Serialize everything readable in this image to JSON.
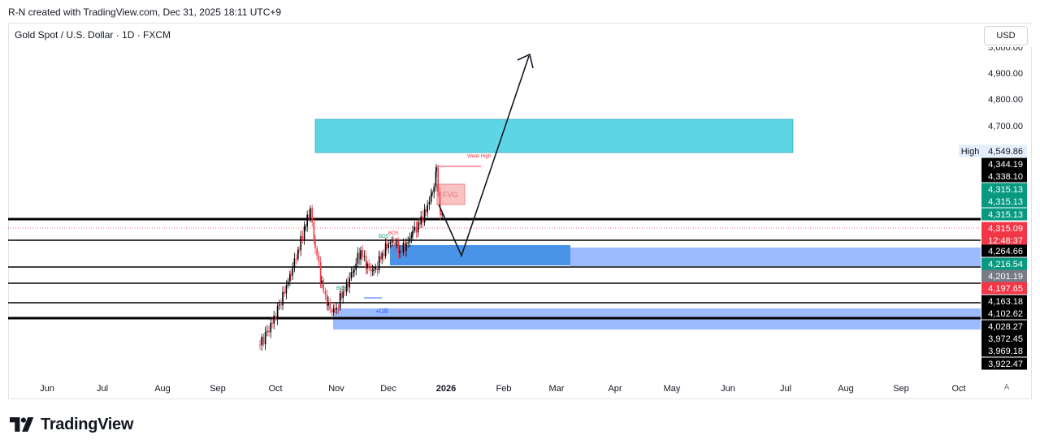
{
  "credit": "R-N created with TradingView.com, Dec 31, 2025 18:11 UTC+9",
  "symbol": "Gold Spot / U.S. Dollar · 1D · FXCM",
  "currency_button": "USD",
  "auto_scale_label": "A",
  "logo_text": "TradingView",
  "colors": {
    "bull": "#089981",
    "bear": "#f23645",
    "zone_cyan": "#4dd0e1",
    "zone_blue": "#3f8ee8",
    "zone_lightblue": "#91b4ff"
  },
  "chart_data": {
    "type": "candlestick",
    "price_labels": [
      {
        "value": 4549.86,
        "text": "4,549.86",
        "tag": "High",
        "style": "high"
      },
      {
        "value": 4344.19,
        "text": "4,344.19",
        "style": "black"
      },
      {
        "value": 4338.1,
        "text": "4,338.10",
        "style": "black"
      },
      {
        "value": 4315.13,
        "text": "4,315.13",
        "style": "green"
      },
      {
        "value": 4315.13,
        "text": "4,315.13",
        "style": "green"
      },
      {
        "value": 4315.13,
        "text": "4,315.13",
        "style": "green"
      },
      {
        "value": 4315.09,
        "text": "4,315.09",
        "style": "red",
        "sub": "12:48:37"
      },
      {
        "value": 4264.66,
        "text": "4,264.66",
        "style": "black"
      },
      {
        "value": 4216.54,
        "text": "4,216.54",
        "style": "green"
      },
      {
        "value": 4201.19,
        "text": "4,201.19",
        "style": "gray"
      },
      {
        "value": 4197.65,
        "text": "4,197.65",
        "style": "red"
      },
      {
        "value": 4163.18,
        "text": "4,163.18",
        "style": "black"
      },
      {
        "value": 4102.62,
        "text": "4,102.62",
        "style": "black"
      },
      {
        "value": 4028.27,
        "text": "4,028.27",
        "style": "black"
      },
      {
        "value": 3972.45,
        "text": "3,972.45",
        "style": "black"
      },
      {
        "value": 3969.18,
        "text": "3,969.18",
        "style": "black"
      },
      {
        "value": 3922.47,
        "text": "3,922.47",
        "style": "black"
      }
    ],
    "y_ticks": [
      "4,900.00",
      "4,800.00",
      "4,700.00"
    ],
    "x_ticks": [
      "Jun",
      "Jul",
      "Aug",
      "Sep",
      "Oct",
      "Nov",
      "Dec",
      "2026",
      "Feb",
      "Mar",
      "Apr",
      "May",
      "Jun",
      "Jul",
      "Aug",
      "Sep",
      "Oct"
    ],
    "annotations": [
      "Weak High",
      "FVG",
      "BOS",
      "BOS",
      "BOS",
      "+OB"
    ],
    "horizontal_levels": [
      4315.13,
      4264.66,
      4216.54,
      4163.18,
      4102.62,
      4028.27
    ]
  }
}
